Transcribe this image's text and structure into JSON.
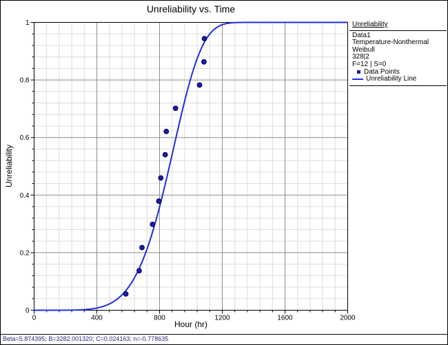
{
  "chart": {
    "title": "Unreliability vs. Time",
    "xlabel": "Hour (hr)",
    "ylabel": "Unreliability"
  },
  "legend": {
    "header": "Unreliability",
    "info_lines": [
      "Data1",
      "Temperature-Nonthermal",
      "Weibull",
      "328|2",
      "F=12 | S=0"
    ],
    "entries": [
      {
        "marker": "square",
        "label": "Data Points"
      },
      {
        "marker": "line",
        "label": "Unreliability Line"
      }
    ]
  },
  "status_bar": {
    "text": "Beta=5.874395; B=3282.001320; C=0.024163; n=-0.778635",
    "params": {
      "Beta": "5.874395",
      "B": "3282.001320",
      "C": "0.024163",
      "n": "-0.778635"
    }
  },
  "chart_data": {
    "type": "scatter",
    "title": "Unreliability vs. Time",
    "xlabel": "Hour (hr)",
    "ylabel": "Unreliability",
    "xlim": [
      0,
      2000
    ],
    "ylim": [
      0,
      1
    ],
    "x_major_step": 400,
    "x_minor_step": 80,
    "y_major_step": 0.2,
    "y_minor_step": 0.04,
    "x_ticks": [
      "0",
      "400",
      "800",
      "1200",
      "1600",
      "2000"
    ],
    "y_ticks": [
      "0",
      "0.2",
      "0.4",
      "0.6",
      "0.8",
      "1"
    ],
    "grid": true,
    "legend_position": "right",
    "series": [
      {
        "name": "Data Points",
        "type": "scatter",
        "x": [
          585,
          670,
          688,
          755,
          795,
          808,
          836,
          843,
          902,
          1055,
          1083,
          1086
        ],
        "y": [
          0.0565,
          0.1371,
          0.2177,
          0.2984,
          0.379,
          0.4597,
          0.5403,
          0.621,
          0.7016,
          0.7823,
          0.8629,
          0.9435
        ]
      },
      {
        "name": "Unreliability Line",
        "type": "line",
        "model": "weibull_cdf",
        "beta": 5.874395,
        "eta_hr": 918.5,
        "note": "F(t)=1-exp(-(t/eta)^beta), eta estimated from plotted curve"
      }
    ],
    "colors": {
      "line": "#1c2ee0",
      "marker_fill": "#1b1bb0",
      "marker_edge": "#000050",
      "grid_major": "#8c8c8c",
      "grid_minor": "#dcdcdc",
      "axis": "#000000"
    }
  }
}
